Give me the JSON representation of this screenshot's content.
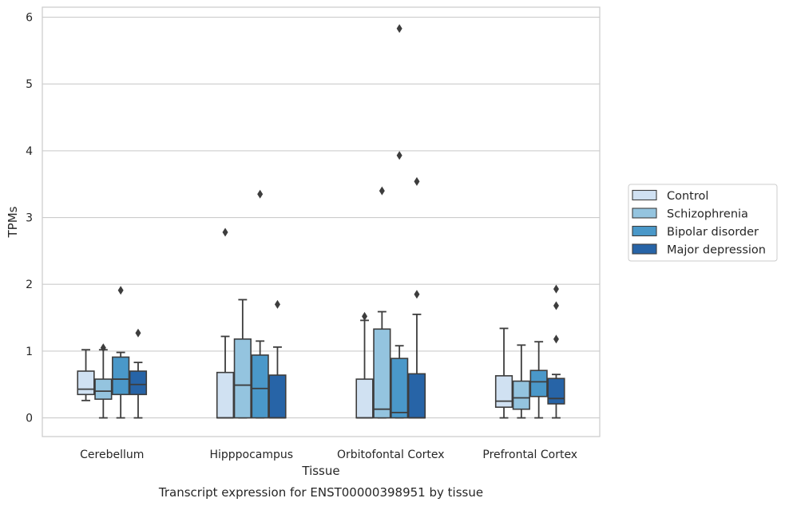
{
  "caption": "Transcript expression for ENST00000398951 by tissue",
  "chart_data": {
    "type": "boxplot",
    "xlabel": "Tissue",
    "ylabel": "TPMs",
    "ylim": [
      -0.28,
      6.15
    ],
    "yticks": [
      0,
      1,
      2,
      3,
      4,
      5,
      6
    ],
    "grid": "horizontal",
    "legend_position": "right",
    "categories": [
      "Cerebellum",
      "Hipppocampus",
      "Orbitofontal Cortex",
      "Prefrontal Cortex"
    ],
    "series": [
      {
        "name": "Control",
        "color": "#d0e1f2",
        "boxes": [
          {
            "whisker_low": 0.26,
            "q1": 0.35,
            "median": 0.43,
            "q3": 0.7,
            "whisker_high": 1.02,
            "outliers": []
          },
          {
            "whisker_low": 0.0,
            "q1": 0.0,
            "median": 0.0,
            "q3": 0.68,
            "whisker_high": 1.22,
            "outliers": [
              2.78
            ]
          },
          {
            "whisker_low": 0.0,
            "q1": 0.0,
            "median": 0.0,
            "q3": 0.58,
            "whisker_high": 1.46,
            "outliers": [
              1.52
            ]
          },
          {
            "whisker_low": 0.0,
            "q1": 0.16,
            "median": 0.25,
            "q3": 0.63,
            "whisker_high": 1.34,
            "outliers": []
          }
        ]
      },
      {
        "name": "Schizophrenia",
        "color": "#94c4df",
        "boxes": [
          {
            "whisker_low": 0.0,
            "q1": 0.28,
            "median": 0.4,
            "q3": 0.58,
            "whisker_high": 1.02,
            "outliers": [
              1.05
            ]
          },
          {
            "whisker_low": 0.0,
            "q1": 0.0,
            "median": 0.49,
            "q3": 1.18,
            "whisker_high": 1.77,
            "outliers": []
          },
          {
            "whisker_low": 0.0,
            "q1": 0.0,
            "median": 0.13,
            "q3": 1.33,
            "whisker_high": 1.59,
            "outliers": [
              3.4
            ]
          },
          {
            "whisker_low": 0.0,
            "q1": 0.13,
            "median": 0.3,
            "q3": 0.55,
            "whisker_high": 1.09,
            "outliers": []
          }
        ]
      },
      {
        "name": "Bipolar disorder",
        "color": "#4a98c9",
        "boxes": [
          {
            "whisker_low": 0.0,
            "q1": 0.35,
            "median": 0.58,
            "q3": 0.91,
            "whisker_high": 0.98,
            "outliers": [
              1.91
            ]
          },
          {
            "whisker_low": 0.0,
            "q1": 0.0,
            "median": 0.44,
            "q3": 0.94,
            "whisker_high": 1.15,
            "outliers": [
              3.35
            ]
          },
          {
            "whisker_low": 0.0,
            "q1": 0.0,
            "median": 0.08,
            "q3": 0.89,
            "whisker_high": 1.08,
            "outliers": [
              3.93,
              5.83
            ]
          },
          {
            "whisker_low": 0.0,
            "q1": 0.32,
            "median": 0.54,
            "q3": 0.71,
            "whisker_high": 1.14,
            "outliers": []
          }
        ]
      },
      {
        "name": "Major depression",
        "color": "#2764a7",
        "boxes": [
          {
            "whisker_low": 0.0,
            "q1": 0.35,
            "median": 0.5,
            "q3": 0.7,
            "whisker_high": 0.83,
            "outliers": [
              1.27
            ]
          },
          {
            "whisker_low": 0.0,
            "q1": 0.0,
            "median": 0.0,
            "q3": 0.64,
            "whisker_high": 1.06,
            "outliers": [
              1.7
            ]
          },
          {
            "whisker_low": 0.0,
            "q1": 0.0,
            "median": 0.0,
            "q3": 0.66,
            "whisker_high": 1.55,
            "outliers": [
              1.85,
              3.54
            ]
          },
          {
            "whisker_low": 0.0,
            "q1": 0.21,
            "median": 0.29,
            "q3": 0.59,
            "whisker_high": 0.65,
            "outliers": [
              1.18,
              1.68,
              1.93
            ]
          }
        ]
      }
    ]
  }
}
